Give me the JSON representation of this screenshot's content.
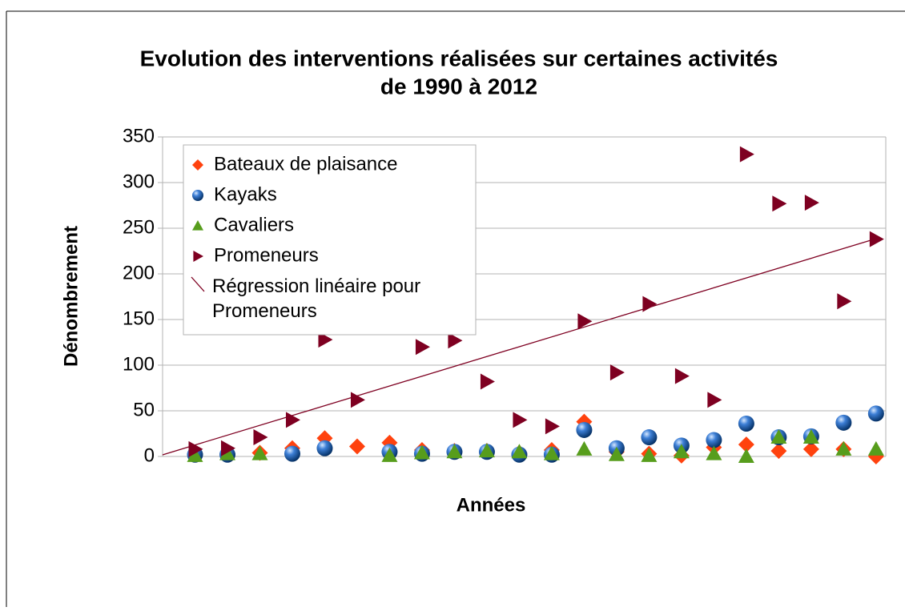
{
  "chart_data": {
    "type": "scatter",
    "title": [
      "Evolution des interventions réalisées sur certaines activités",
      "de 1990 à 2012"
    ],
    "x_label": "Années",
    "y_label": "Dénombrement",
    "x": [
      1,
      2,
      3,
      4,
      5,
      6,
      7,
      8,
      9,
      10,
      11,
      12,
      13,
      14,
      15,
      16,
      17,
      18,
      19,
      20,
      21,
      22
    ],
    "xlim": [
      0,
      22.3
    ],
    "ylim": [
      0,
      350
    ],
    "yticks": [
      0,
      50,
      100,
      150,
      200,
      250,
      300,
      350
    ],
    "grid": true,
    "legend": "upper left",
    "series": [
      {
        "name": "Bateaux de plaisance",
        "color": "#ff420e",
        "marker": "diamond",
        "values": [
          3,
          3,
          4,
          9,
          20,
          11,
          15,
          7,
          6,
          6,
          4,
          7,
          38,
          5,
          3,
          1,
          10,
          13,
          6,
          8,
          8,
          0
        ]
      },
      {
        "name": "Kayaks",
        "color": "#004586",
        "marker": "sphere",
        "values": [
          2,
          2,
          null,
          3,
          9,
          null,
          5,
          3,
          5,
          5,
          2,
          2,
          29,
          9,
          21,
          12,
          18,
          36,
          21,
          22,
          37,
          47
        ]
      },
      {
        "name": "Cavaliers",
        "color": "#579d1c",
        "marker": "triangle",
        "values": [
          1,
          3,
          3,
          null,
          null,
          null,
          1,
          4,
          5,
          6,
          5,
          3,
          8,
          2,
          1,
          5,
          3,
          0,
          21,
          21,
          8,
          8
        ]
      },
      {
        "name": "Promeneurs",
        "color": "#7e0021",
        "marker": "arrow",
        "values": [
          8,
          9,
          21,
          40,
          128,
          62,
          null,
          120,
          127,
          82,
          40,
          33,
          148,
          92,
          167,
          88,
          62,
          331,
          277,
          278,
          170,
          238
        ]
      }
    ],
    "trendline": {
      "name": "Régression linéaire pour Promeneurs",
      "color": "#7e0021",
      "x": [
        0,
        22
      ],
      "values": [
        1.8,
        238.6
      ]
    }
  }
}
